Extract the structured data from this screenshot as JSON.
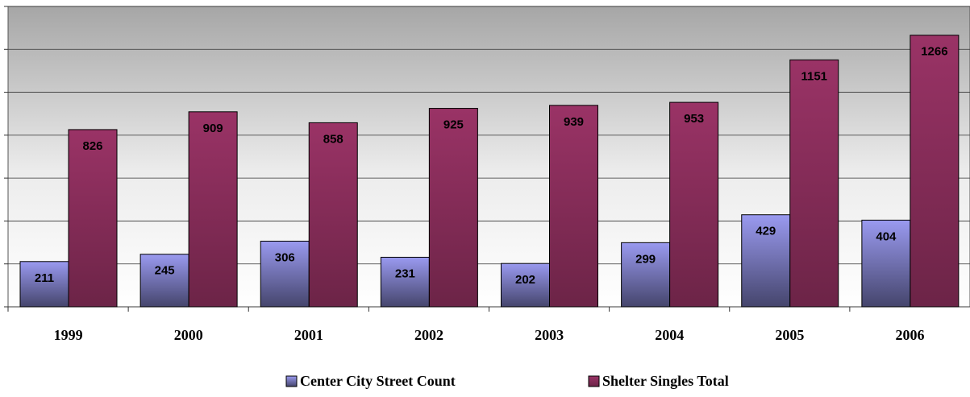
{
  "chart_data": {
    "type": "bar",
    "categories": [
      "1999",
      "2000",
      "2001",
      "2002",
      "2003",
      "2004",
      "2005",
      "2006"
    ],
    "series": [
      {
        "name": "Center City Street Count",
        "color": "#9a9af0",
        "values": [
          211,
          245,
          306,
          231,
          202,
          299,
          429,
          404
        ]
      },
      {
        "name": "Shelter Singles Total",
        "color": "#9a3366",
        "values": [
          826,
          909,
          858,
          925,
          939,
          953,
          1151,
          1266
        ]
      }
    ],
    "ylim": [
      0,
      1400
    ],
    "yticks": [
      0,
      200,
      400,
      600,
      800,
      1000,
      1200,
      1400
    ],
    "grid": true,
    "legend": "bottom"
  }
}
